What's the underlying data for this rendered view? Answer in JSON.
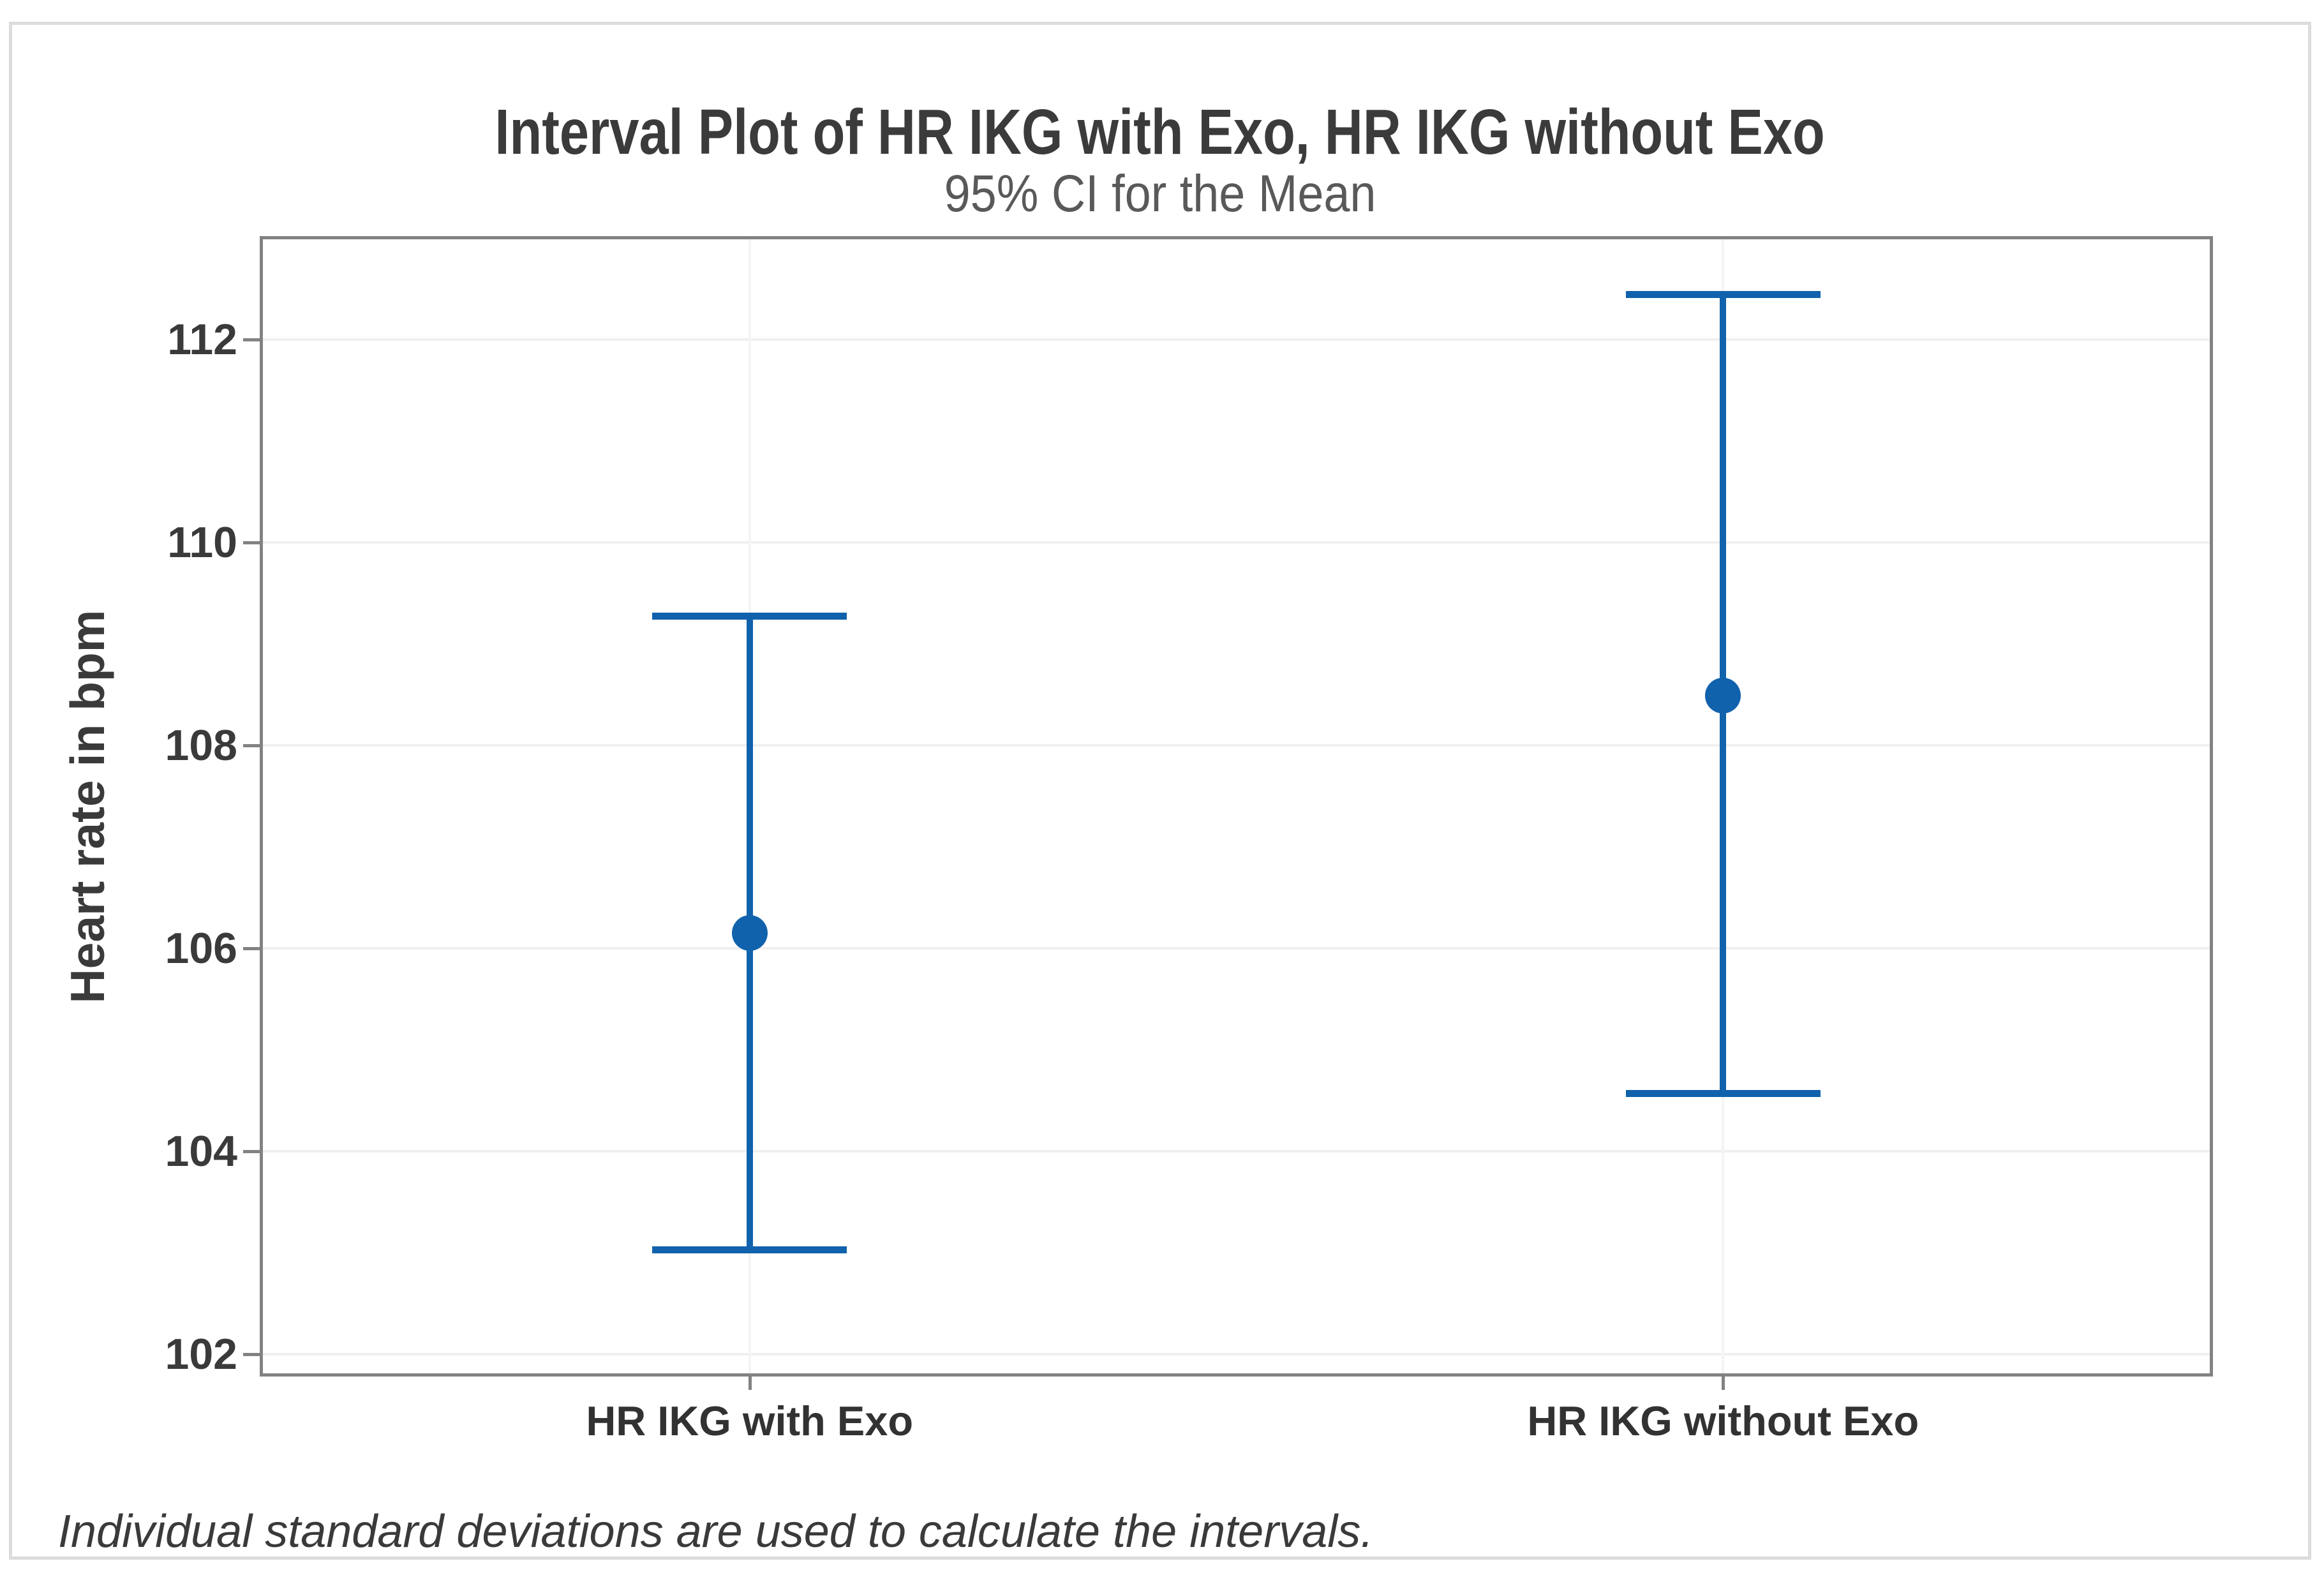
{
  "chart_data": {
    "type": "interval_plot",
    "title": "Interval Plot of HR IKG with Exo, HR IKG without Exo",
    "subtitle": "95% CI for the Mean",
    "ylabel": "Heart rate in bpm",
    "footnote": "Individual standard deviations are used to calculate the intervals.",
    "categories": [
      "HR IKG with Exo",
      "HR IKG without Exo"
    ],
    "series": [
      {
        "name": "HR IKG with Exo",
        "mean": 106.15,
        "ci_low": 103.03,
        "ci_high": 109.28
      },
      {
        "name": "HR IKG without Exo",
        "mean": 108.49,
        "ci_low": 104.57,
        "ci_high": 112.45
      }
    ],
    "ylim": [
      101.81,
      112.99
    ],
    "yticks": [
      102,
      104,
      106,
      108,
      110,
      112
    ],
    "grid": "horizontal and vertical gridlines, very light",
    "legend": "none",
    "colors": {
      "interval_blue": "#1162ac",
      "plot_border": "#828282",
      "panel_border": "#dcdcdc",
      "gridline": "#f0f0f0",
      "title_text": "#3b3b3b",
      "subtitle_text": "#595959",
      "label_text": "#3a3a3a"
    }
  }
}
